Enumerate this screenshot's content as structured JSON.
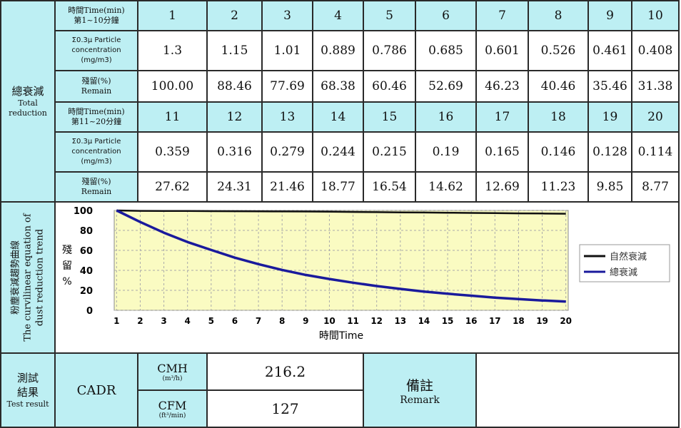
{
  "table": {
    "side_label": {
      "zh": "總衰減",
      "en1": "Total",
      "en2": "reduction"
    },
    "rows_a": {
      "time_label_1": "時間Time(min)",
      "time_label_2": "第1~10分鐘",
      "conc_label_1": "Σ0.3μ Particle",
      "conc_label_2": "concentration",
      "conc_label_3": "(mg/m3)",
      "remain_label_1": "殘留(%)",
      "remain_label_2": "Remain",
      "times": [
        "1",
        "2",
        "3",
        "4",
        "5",
        "6",
        "7",
        "8",
        "9",
        "10"
      ],
      "conc": [
        "1.3",
        "1.15",
        "1.01",
        "0.889",
        "0.786",
        "0.685",
        "0.601",
        "0.526",
        "0.461",
        "0.408"
      ],
      "remain": [
        "100.00",
        "88.46",
        "77.69",
        "68.38",
        "60.46",
        "52.69",
        "46.23",
        "40.46",
        "35.46",
        "31.38"
      ]
    },
    "rows_b": {
      "time_label_1": "時間Time(min)",
      "time_label_2": "第11~20分鐘",
      "conc_label_1": "Σ0.3μ Particle",
      "conc_label_2": "concentration",
      "conc_label_3": "(mg/m3)",
      "remain_label_1": "殘留(%)",
      "remain_label_2": "Remain",
      "times": [
        "11",
        "12",
        "13",
        "14",
        "15",
        "16",
        "17",
        "18",
        "19",
        "20"
      ],
      "conc": [
        "0.359",
        "0.316",
        "0.279",
        "0.244",
        "0.215",
        "0.19",
        "0.165",
        "0.146",
        "0.128",
        "0.114"
      ],
      "remain": [
        "27.62",
        "24.31",
        "21.46",
        "18.77",
        "16.54",
        "14.62",
        "12.69",
        "11.23",
        "9.85",
        "8.77"
      ]
    },
    "chart_side_label": {
      "zh": "粉塵衰減趨勢曲線",
      "en1": "The curvilinear equation of",
      "en2": "dust reduction trend"
    }
  },
  "chart_data": {
    "type": "line",
    "title": "",
    "xlabel": "時間Time",
    "ylabel": "殘留%",
    "x": [
      1,
      2,
      3,
      4,
      5,
      6,
      7,
      8,
      9,
      10,
      11,
      12,
      13,
      14,
      15,
      16,
      17,
      18,
      19,
      20
    ],
    "xlim": [
      1,
      20
    ],
    "ylim": [
      0,
      100
    ],
    "yticks": [
      0,
      20,
      40,
      60,
      80,
      100
    ],
    "grid": true,
    "legend_position": "right",
    "series": [
      {
        "name": "自然衰減",
        "color": "#111111",
        "values": [
          100,
          99.6,
          99.5,
          99.4,
          99.3,
          99.2,
          99.1,
          99,
          98.9,
          98.7,
          98.5,
          98.3,
          98.1,
          97.9,
          97.7,
          97.5,
          97.3,
          97.1,
          96.9,
          96.7
        ]
      },
      {
        "name": "總衰減",
        "color": "#1a1a9c",
        "values": [
          100,
          88.46,
          77.69,
          68.38,
          60.46,
          52.69,
          46.23,
          40.46,
          35.46,
          31.38,
          27.62,
          24.31,
          21.46,
          18.77,
          16.54,
          14.62,
          12.69,
          11.23,
          9.85,
          8.77
        ]
      }
    ]
  },
  "result": {
    "label_zh_1": "測試",
    "label_zh_2": "結果",
    "label_en": "Test result",
    "cadr": "CADR",
    "cmh_label": "CMH",
    "cmh_unit": "(m³/h)",
    "cmh_value": "216.2",
    "cfm_label": "CFM",
    "cfm_unit": "(ft³/min)",
    "cfm_value": "127",
    "remark_zh": "備註",
    "remark_en": "Remark",
    "remark_text": ""
  }
}
